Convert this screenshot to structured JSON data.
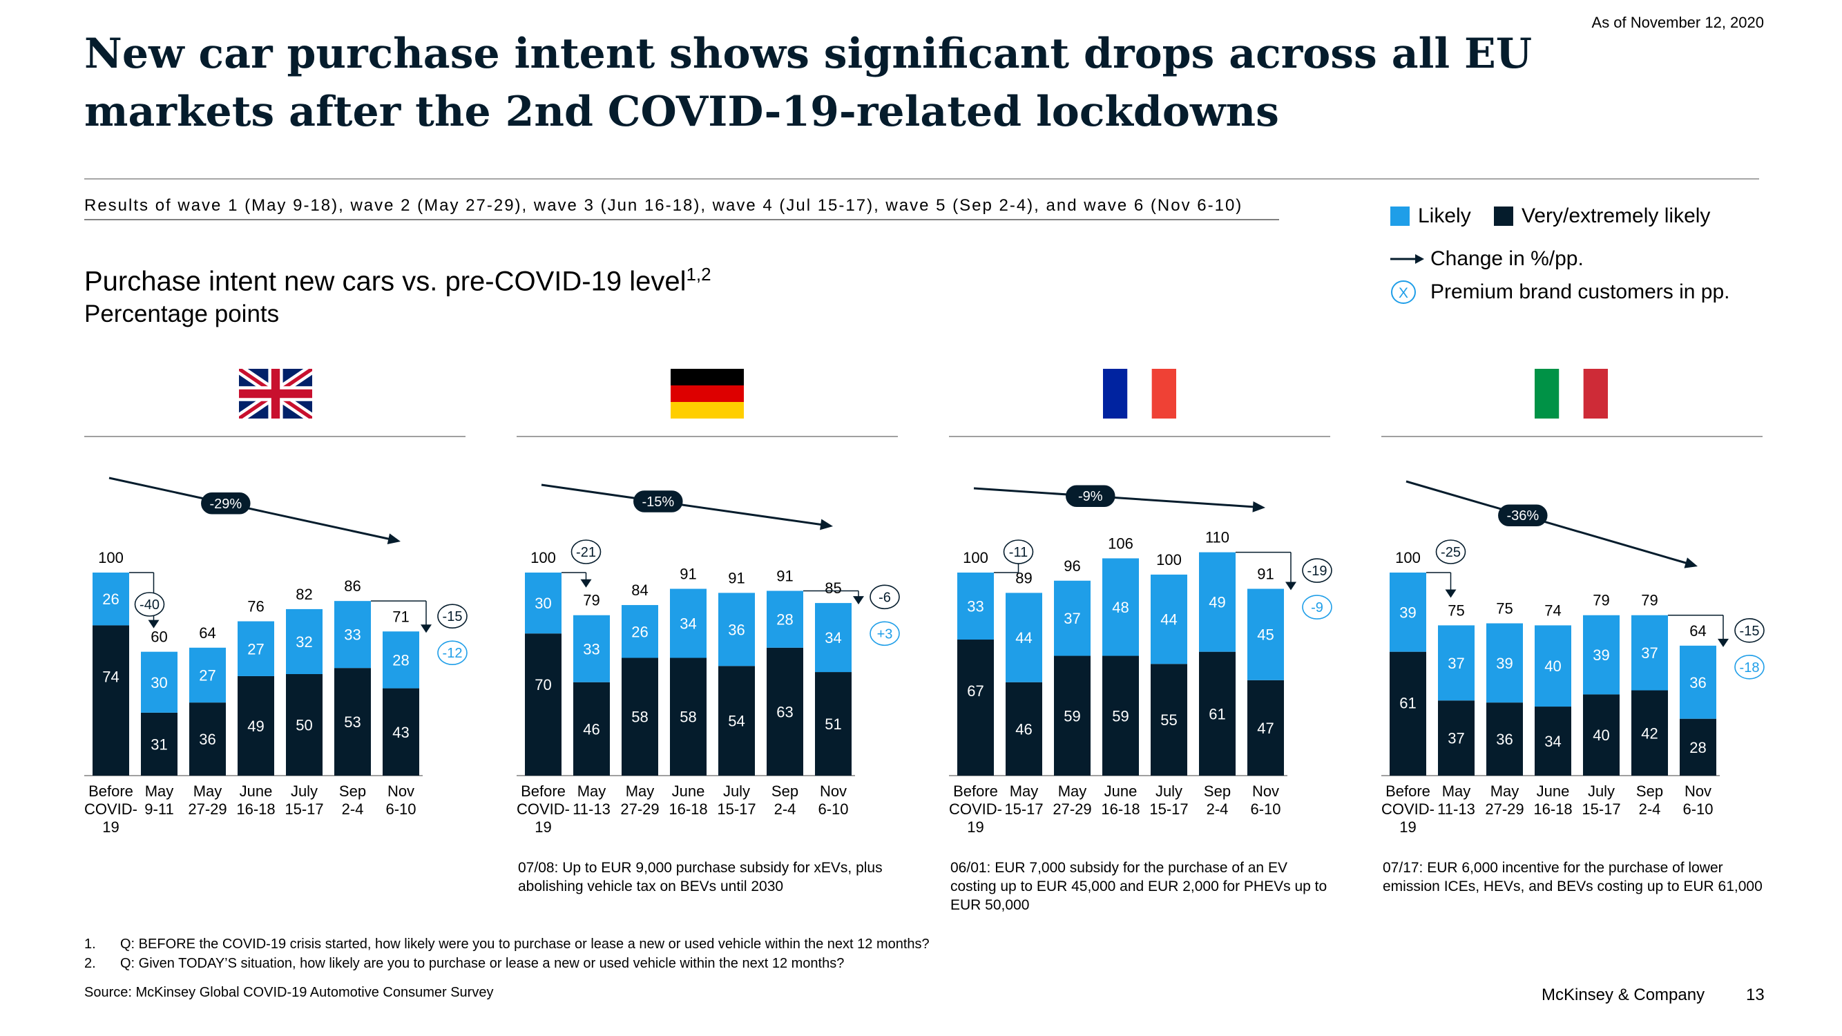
{
  "as_of": "As of November 12, 2020",
  "title": "New car purchase intent shows significant drops across all EU markets after the 2nd COVID-19-related lockdowns",
  "waves_text": "Results of wave 1 (May 9-18), wave 2 (May 27-29), wave 3 (Jun 16-18), wave 4 (Jul 15-17), wave 5 (Sep 2-4), and wave 6 (Nov 6-10)",
  "subtitle": "Purchase intent new cars vs. pre-COVID-19 level",
  "subtitle_sup": "1,2",
  "subtitle2": "Percentage points",
  "legend": {
    "likely": "Likely",
    "very_likely": "Very/extremely likely",
    "change": "Change in %/pp.",
    "premium_marker": "X",
    "premium": "Premium brand customers in pp.",
    "likely_color": "#1f9ee8",
    "very_color": "#051c2c"
  },
  "chart_data": [
    {
      "type": "bar",
      "stacked": true,
      "country": "United Kingdom",
      "flag": "uk-flag-icon",
      "categories": [
        "Before COVID-19",
        "May 9-11",
        "May 27-29",
        "June 16-18",
        "July 15-17",
        "Sep 2-4",
        "Nov 6-10"
      ],
      "series": [
        {
          "name": "Very/extremely likely",
          "values": [
            74,
            31,
            36,
            49,
            50,
            53,
            43
          ]
        },
        {
          "name": "Likely",
          "values": [
            26,
            30,
            27,
            27,
            32,
            33,
            28
          ]
        }
      ],
      "totals": [
        100,
        60,
        64,
        76,
        82,
        86,
        71
      ],
      "first_change": "-40",
      "first_change_kind": "circle",
      "trend_label": "-29%",
      "last_change": "-15",
      "premium_change": "-12",
      "note": ""
    },
    {
      "type": "bar",
      "stacked": true,
      "country": "Germany",
      "flag": "germany-flag-icon",
      "categories": [
        "Before COVID-19",
        "May 11-13",
        "May 27-29",
        "June 16-18",
        "July 15-17",
        "Sep 2-4",
        "Nov 6-10"
      ],
      "series": [
        {
          "name": "Very/extremely likely",
          "values": [
            70,
            46,
            58,
            58,
            54,
            63,
            51
          ]
        },
        {
          "name": "Likely",
          "values": [
            30,
            33,
            26,
            34,
            36,
            28,
            34
          ]
        }
      ],
      "totals": [
        100,
        79,
        84,
        91,
        91,
        91,
        85
      ],
      "first_change": "-21",
      "first_change_kind": "above",
      "trend_label": "-15%",
      "last_change": "-6",
      "premium_change": "+3",
      "note": "07/08: Up to EUR 9,000 purchase subsidy for xEVs, plus abolishing vehicle tax on BEVs until 2030"
    },
    {
      "type": "bar",
      "stacked": true,
      "country": "France",
      "flag": "france-flag-icon",
      "categories": [
        "Before COVID-19",
        "May 15-17",
        "May 27-29",
        "June 16-18",
        "July 15-17",
        "Sep 2-4",
        "Nov 6-10"
      ],
      "series": [
        {
          "name": "Very/extremely likely",
          "values": [
            67,
            46,
            59,
            59,
            55,
            61,
            47
          ]
        },
        {
          "name": "Likely",
          "values": [
            33,
            44,
            37,
            48,
            44,
            49,
            45
          ]
        }
      ],
      "totals": [
        100,
        89,
        96,
        106,
        100,
        110,
        91
      ],
      "first_change": "-11",
      "first_change_kind": "above",
      "trend_label": "-9%",
      "last_change": "-19",
      "premium_change": "-9",
      "note": "06/01: EUR 7,000 subsidy for the purchase of an EV costing up to EUR 45,000 and EUR 2,000 for PHEVs up to EUR 50,000"
    },
    {
      "type": "bar",
      "stacked": true,
      "country": "Italy",
      "flag": "italy-flag-icon",
      "categories": [
        "Before COVID-19",
        "May 11-13",
        "May 27-29",
        "June 16-18",
        "July 15-17",
        "Sep 2-4",
        "Nov 6-10"
      ],
      "series": [
        {
          "name": "Very/extremely likely",
          "values": [
            61,
            37,
            36,
            34,
            40,
            42,
            28
          ]
        },
        {
          "name": "Likely",
          "values": [
            39,
            37,
            39,
            40,
            39,
            37,
            36
          ]
        }
      ],
      "totals": [
        100,
        75,
        75,
        74,
        79,
        79,
        64
      ],
      "first_change": "-25",
      "first_change_kind": "above",
      "trend_label": "-36%",
      "last_change": "-15",
      "premium_change": "-18",
      "note": "07/17: EUR 6,000 incentive for the purchase of lower emission ICEs, HEVs, and BEVs costing up to EUR 61,000"
    }
  ],
  "footnotes": [
    {
      "num": "1.",
      "text": "Q: BEFORE the COVID-19 crisis started, how likely were you to purchase or lease a new or used vehicle within the next 12 months?"
    },
    {
      "num": "2.",
      "text": "Q: Given TODAY’S situation, how likely are you to purchase or lease a new or used vehicle within the next 12 months?"
    }
  ],
  "source": "Source: McKinsey Global COVID-19 Automotive Consumer Survey",
  "company": "McKinsey & Company",
  "page_number": "13"
}
